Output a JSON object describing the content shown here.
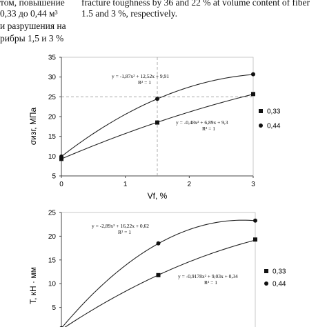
{
  "text_left": [
    "том, повышение",
    "0,33 до 0,44 м³",
    "и разрушения на",
    "рибры 1,5 и 3 %"
  ],
  "text_right": [
    "fracture toughness by 36 and 22 % at volume content of fiber",
    "1.5 and 3 %, respectively."
  ],
  "chart_data": [
    {
      "type": "line",
      "xlabel": "Vf, %",
      "ylabel": "σизг, МПа",
      "xlim": [
        0,
        3
      ],
      "ylim": [
        5,
        35
      ],
      "x_ticks": [
        "0",
        "1",
        "2",
        "3"
      ],
      "y_ticks": [
        "5",
        "10",
        "15",
        "20",
        "25",
        "30",
        "35"
      ],
      "grid": false,
      "legend_position": "right",
      "series": [
        {
          "name": "0,33",
          "marker": "square",
          "x": [
            0,
            1.5,
            3
          ],
          "y": [
            9.3,
            18.5,
            25.7
          ],
          "fit": [
            -0.48,
            6.89,
            9.3
          ],
          "equation": "y = -0,48x² + 6,89x + 9,3",
          "r2": "R² = 1"
        },
        {
          "name": "0,44",
          "marker": "circle",
          "x": [
            0,
            1.5,
            3
          ],
          "y": [
            9.9,
            24.5,
            30.7
          ],
          "fit": [
            -1.87,
            12.52,
            9.91
          ],
          "equation": "y = -1,87x² + 12,52x + 9,91",
          "r2": "R² = 1"
        }
      ],
      "reference_lines": {
        "x": 1.5,
        "y": 25
      }
    },
    {
      "type": "line",
      "xlabel": "",
      "ylabel": "T, кН · мм",
      "xlim": [
        0,
        3
      ],
      "ylim": [
        0,
        25
      ],
      "y_ticks": [
        "25",
        "20",
        "15",
        "10",
        "5"
      ],
      "grid": false,
      "legend_position": "right",
      "series": [
        {
          "name": "0,33",
          "marker": "square",
          "x": [
            0,
            1.5,
            3
          ],
          "y": [
            0.34,
            11.8,
            19.3
          ],
          "fit": [
            -0.9178,
            9.03,
            0.34
          ],
          "equation": "y = -0,9178x² + 9,03x + 0,34",
          "r2": "R² = 1"
        },
        {
          "name": "0,44",
          "marker": "circle",
          "x": [
            0,
            1.5,
            3
          ],
          "y": [
            0.62,
            18.5,
            23.3
          ],
          "fit": [
            -2.89,
            16.22,
            0.62
          ],
          "equation": "y = -2,89x² + 16,22x + 0,62",
          "r2": "R² = 1"
        }
      ]
    }
  ]
}
